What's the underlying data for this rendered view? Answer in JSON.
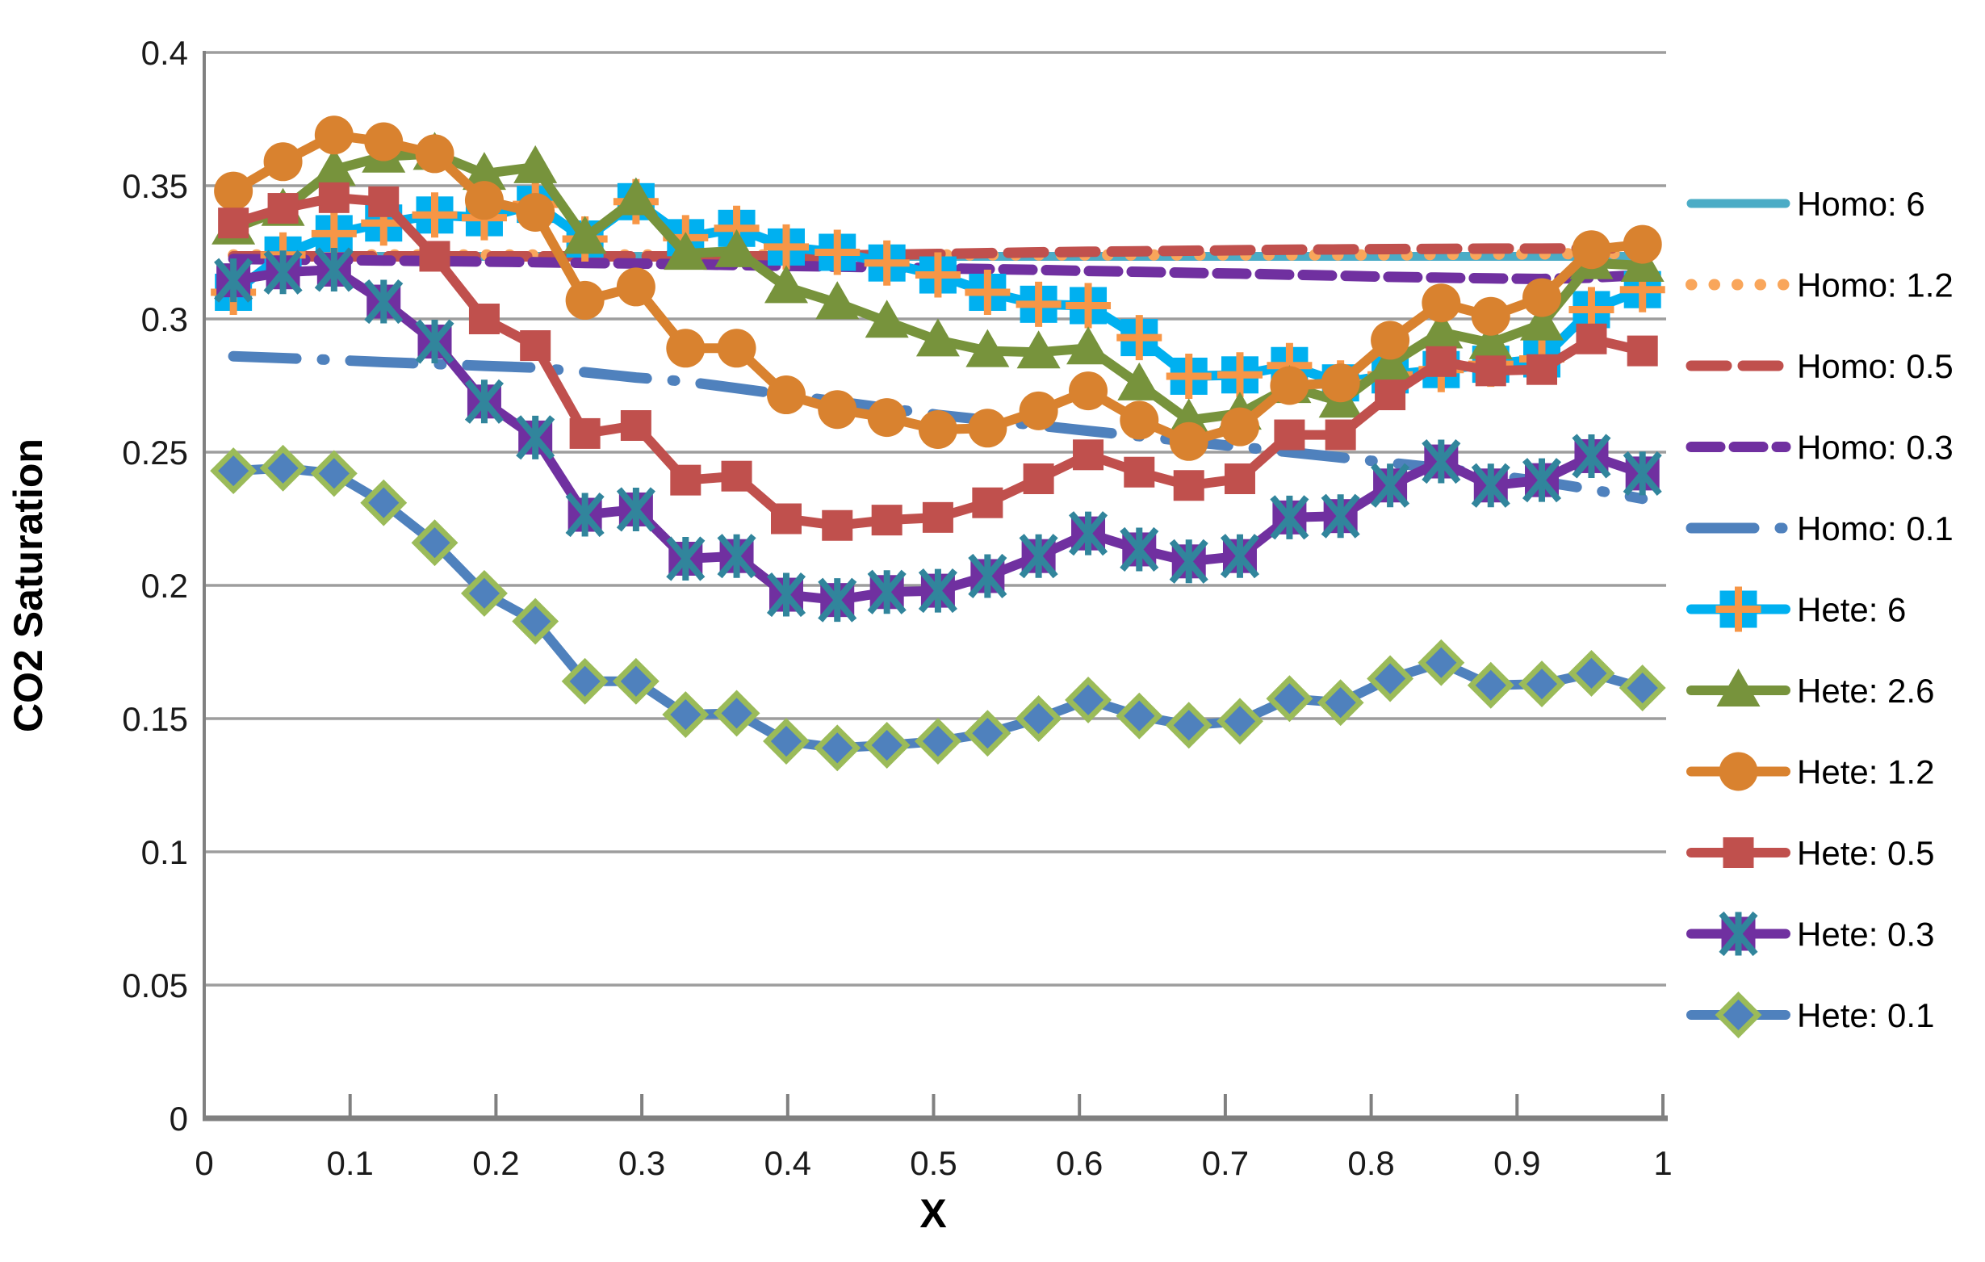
{
  "colors": {
    "background": "#ffffff",
    "axis": "#808080",
    "grid": "#9d9d9d",
    "text": "#1a1a1a"
  },
  "chart_data": {
    "type": "line",
    "title": "",
    "xlabel": "X",
    "ylabel": "CO2 Saturation",
    "xlim": [
      0,
      1
    ],
    "ylim": [
      0,
      0.4
    ],
    "grid": "horizontal",
    "legend_position": "right",
    "x_tick_values": [
      0,
      0.1,
      0.2,
      0.3,
      0.4,
      0.5,
      0.6,
      0.7,
      0.8,
      0.9,
      1
    ],
    "x_tick_labels": [
      "0",
      "0.1",
      "0.2",
      "0.3",
      "0.4",
      "0.5",
      "0.6",
      "0.7",
      "0.8",
      "0.9",
      "1"
    ],
    "y_tick_values": [
      0,
      0.05,
      0.1,
      0.15,
      0.2,
      0.25,
      0.3,
      0.35,
      0.4
    ],
    "y_tick_labels": [
      "0",
      "0.05",
      "0.1",
      "0.15",
      "0.2",
      "0.25",
      "0.3",
      "0.35",
      "0.4"
    ],
    "x": [
      0.02,
      0.054,
      0.089,
      0.123,
      0.158,
      0.192,
      0.227,
      0.261,
      0.296,
      0.33,
      0.365,
      0.399,
      0.434,
      0.468,
      0.503,
      0.537,
      0.572,
      0.606,
      0.641,
      0.675,
      0.71,
      0.744,
      0.779,
      0.813,
      0.848,
      0.882,
      0.917,
      0.951,
      0.986
    ],
    "series": [
      {
        "id": "homo-6",
        "name": "Homo: 6",
        "color": "#4BACC6",
        "line_width": 11,
        "dash": "",
        "linecap": "round",
        "marker": null,
        "values": [
          0.3235,
          0.3235,
          0.3235,
          0.3235,
          0.3235,
          0.3235,
          0.3235,
          0.3235,
          0.3235,
          0.3235,
          0.3235,
          0.3235,
          0.3235,
          0.3235,
          0.3235,
          0.3235,
          0.3235,
          0.3235,
          0.3235,
          0.3235,
          0.3235,
          0.3235,
          0.3235,
          0.3235,
          0.3235,
          0.3235,
          0.3235,
          0.3235,
          0.3235
        ]
      },
      {
        "id": "homo-1-2",
        "name": "Homo: 1.2",
        "color": "#F9A65B",
        "line_width": 14,
        "dash": "0.5 28",
        "linecap": "round",
        "marker": null,
        "values": [
          0.324,
          0.324,
          0.324,
          0.324,
          0.324,
          0.324,
          0.324,
          0.324,
          0.324,
          0.324,
          0.324,
          0.324,
          0.324,
          0.324,
          0.324,
          0.324,
          0.324,
          0.324,
          0.324,
          0.324,
          0.324,
          0.324,
          0.324,
          0.324,
          0.3242,
          0.3243,
          0.3244,
          0.3245,
          0.3245
        ]
      },
      {
        "id": "homo-0-5",
        "name": "Homo: 0.5",
        "color": "#C0504D",
        "line_width": 13,
        "dash": "44 20",
        "linecap": "round",
        "marker": null,
        "values": [
          0.3235,
          0.3235,
          0.3235,
          0.3235,
          0.3235,
          0.3235,
          0.3235,
          0.3235,
          0.3235,
          0.3235,
          0.3235,
          0.3235,
          0.3238,
          0.3241,
          0.3244,
          0.3247,
          0.325,
          0.3252,
          0.3254,
          0.3256,
          0.3258,
          0.326,
          0.3261,
          0.3262,
          0.3263,
          0.3264,
          0.3264,
          0.3265,
          0.3265
        ]
      },
      {
        "id": "homo-0-3",
        "name": "Homo: 0.3",
        "color": "#7030A0",
        "line_width": 13,
        "dash": "36 17",
        "linecap": "round",
        "marker": null,
        "values": [
          0.3225,
          0.3223,
          0.3221,
          0.3219,
          0.3217,
          0.3215,
          0.3213,
          0.321,
          0.3208,
          0.3205,
          0.3202,
          0.3199,
          0.3196,
          0.3193,
          0.319,
          0.3187,
          0.3184,
          0.318,
          0.3177,
          0.3173,
          0.317,
          0.3166,
          0.3162,
          0.3158,
          0.3155,
          0.3152,
          0.315,
          0.3155,
          0.3165
        ]
      },
      {
        "id": "homo-0-1",
        "name": "Homo: 0.1",
        "color": "#4F81BD",
        "line_width": 13,
        "dash": "78 32 3 32",
        "linecap": "round",
        "marker": null,
        "values": [
          0.286,
          0.2853,
          0.2846,
          0.2838,
          0.2831,
          0.2824,
          0.2817,
          0.28,
          0.278,
          0.2765,
          0.274,
          0.2715,
          0.269,
          0.2665,
          0.264,
          0.262,
          0.26,
          0.258,
          0.256,
          0.254,
          0.252,
          0.25,
          0.248,
          0.246,
          0.244,
          0.2415,
          0.239,
          0.236,
          0.2325
        ]
      },
      {
        "id": "hete-6",
        "name": "Hete: 6",
        "color": "#00B0F0",
        "line_width": 12,
        "dash": "",
        "linecap": "round",
        "marker": {
          "type": "square-plus",
          "fill": "#00B0F0",
          "plus_color": "#F79646"
        },
        "values": [
          0.31,
          0.324,
          0.332,
          0.336,
          0.339,
          0.338,
          0.343,
          0.33,
          0.344,
          0.3305,
          0.334,
          0.327,
          0.325,
          0.321,
          0.3165,
          0.31,
          0.3055,
          0.305,
          0.293,
          0.2785,
          0.279,
          0.2825,
          0.276,
          0.279,
          0.281,
          0.283,
          0.285,
          0.3035,
          0.311
        ]
      },
      {
        "id": "hete-2-6",
        "name": "Hete: 2.6",
        "color": "#77933C",
        "line_width": 12,
        "dash": "",
        "linecap": "round",
        "marker": {
          "type": "triangle",
          "fill": "#77933C"
        },
        "values": [
          0.334,
          0.341,
          0.356,
          0.361,
          0.362,
          0.3545,
          0.357,
          0.3305,
          0.345,
          0.3245,
          0.3255,
          0.312,
          0.306,
          0.299,
          0.292,
          0.288,
          0.2875,
          0.289,
          0.2755,
          0.262,
          0.2645,
          0.2745,
          0.269,
          0.283,
          0.295,
          0.291,
          0.298,
          0.321,
          0.32
        ]
      },
      {
        "id": "hete-1-2",
        "name": "Hete: 1.2",
        "color": "#D9822F",
        "line_width": 12,
        "dash": "",
        "linecap": "round",
        "marker": {
          "type": "circle",
          "fill": "#D9822F"
        },
        "values": [
          0.348,
          0.359,
          0.369,
          0.3665,
          0.362,
          0.3445,
          0.34,
          0.307,
          0.312,
          0.289,
          0.289,
          0.2715,
          0.266,
          0.263,
          0.2585,
          0.259,
          0.2655,
          0.273,
          0.262,
          0.254,
          0.2595,
          0.275,
          0.276,
          0.292,
          0.306,
          0.301,
          0.308,
          0.326,
          0.328
        ]
      },
      {
        "id": "hete-0-5",
        "name": "Hete: 0.5",
        "color": "#C0504D",
        "line_width": 12,
        "dash": "",
        "linecap": "round",
        "marker": {
          "type": "square",
          "fill": "#C0504D"
        },
        "values": [
          0.336,
          0.3415,
          0.3455,
          0.344,
          0.3235,
          0.3,
          0.29,
          0.257,
          0.26,
          0.2395,
          0.241,
          0.225,
          0.2225,
          0.2245,
          0.2255,
          0.231,
          0.24,
          0.249,
          0.2425,
          0.2375,
          0.24,
          0.2565,
          0.2565,
          0.2715,
          0.284,
          0.2805,
          0.281,
          0.2925,
          0.288
        ]
      },
      {
        "id": "hete-0-3",
        "name": "Hete: 0.3",
        "color": "#7030A0",
        "line_width": 12,
        "dash": "",
        "linecap": "round",
        "marker": {
          "type": "square-asterisk",
          "fill": "#7030A0",
          "star_color": "#31859C"
        },
        "values": [
          0.3145,
          0.3175,
          0.3185,
          0.3065,
          0.2915,
          0.269,
          0.2555,
          0.2265,
          0.2285,
          0.21,
          0.211,
          0.1965,
          0.1945,
          0.1975,
          0.198,
          0.2035,
          0.211,
          0.2195,
          0.2135,
          0.209,
          0.211,
          0.2255,
          0.226,
          0.2375,
          0.2465,
          0.2375,
          0.2395,
          0.2485,
          0.242
        ]
      },
      {
        "id": "hete-0-1",
        "name": "Hete: 0.1",
        "color": "#4F81BD",
        "line_width": 12,
        "dash": "",
        "linecap": "round",
        "marker": {
          "type": "diamond",
          "fill": "#4F81BD",
          "stroke": "#9BBB59"
        },
        "values": [
          0.243,
          0.244,
          0.242,
          0.231,
          0.216,
          0.197,
          0.1865,
          0.164,
          0.164,
          0.1515,
          0.152,
          0.1415,
          0.139,
          0.14,
          0.1415,
          0.1445,
          0.15,
          0.157,
          0.151,
          0.1475,
          0.149,
          0.1575,
          0.156,
          0.165,
          0.171,
          0.1625,
          0.163,
          0.167,
          0.1615
        ]
      }
    ]
  }
}
